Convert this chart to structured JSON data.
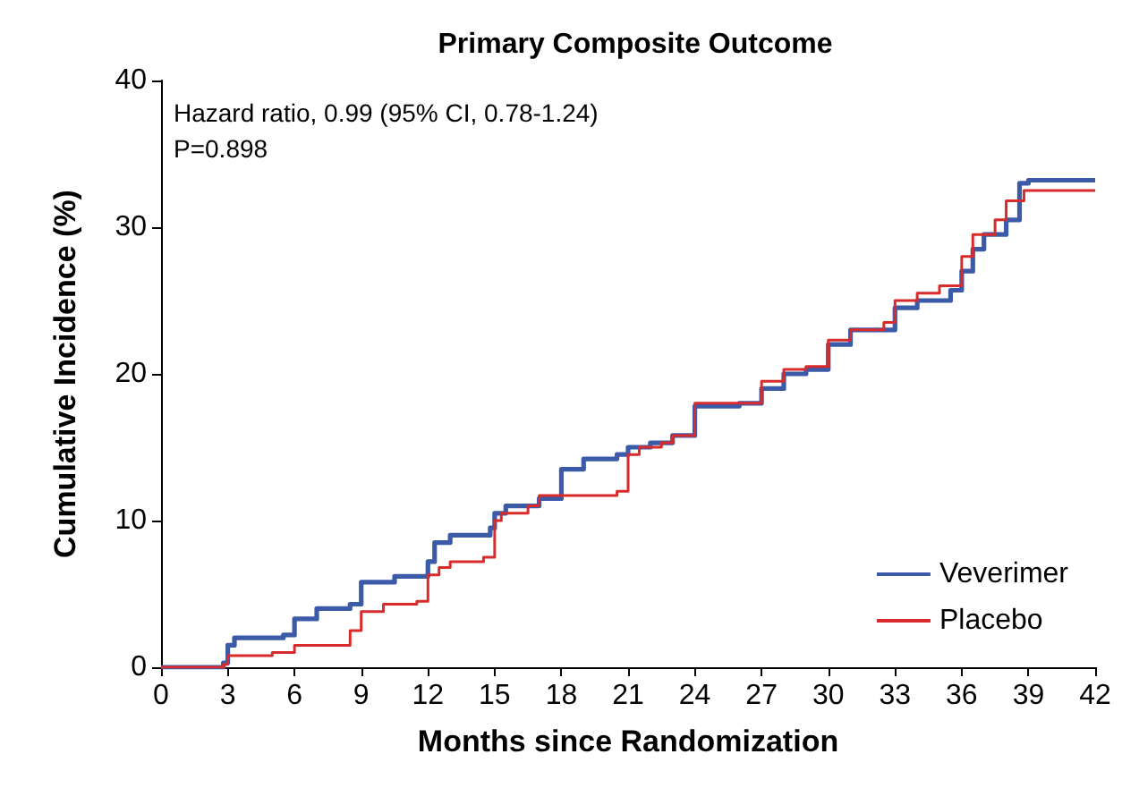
{
  "chart_data": {
    "type": "step",
    "title": "Primary Composite Outcome",
    "xlabel": "Months since Randomization",
    "ylabel": "Cumulative Incidence (%)",
    "annotations": [
      "Hazard ratio, 0.99 (95% CI, 0.78-1.24)",
      "P=0.898"
    ],
    "series": [
      {
        "name": "Veverimer",
        "color": "#3b5ba9",
        "x": [
          0,
          2.8,
          3,
          3.3,
          5.5,
          6,
          7,
          8.5,
          9,
          10.5,
          12,
          12.3,
          13,
          14.8,
          15,
          15.5,
          17,
          18,
          19,
          20.5,
          21,
          22,
          23,
          24,
          26,
          27,
          28,
          29,
          30,
          31,
          33,
          34,
          35.5,
          36,
          36.5,
          37,
          38,
          38.6,
          39,
          42
        ],
        "values": [
          0,
          0.3,
          1.5,
          2,
          2.2,
          3.3,
          4,
          4.3,
          5.8,
          6.2,
          7.2,
          8.5,
          9,
          9.5,
          10.5,
          11,
          11.5,
          13.5,
          14.2,
          14.5,
          15,
          15.3,
          15.8,
          17.8,
          18,
          19,
          20,
          20.3,
          22,
          23,
          24.5,
          25,
          25.7,
          27,
          28.5,
          29.5,
          30.5,
          33,
          33.2,
          33.2
        ]
      },
      {
        "name": "Placebo",
        "color": "#d92b2b",
        "x": [
          0,
          2.8,
          3,
          5,
          6,
          8.5,
          9,
          10,
          11.5,
          12,
          12.5,
          13,
          14.5,
          15,
          15.3,
          16.5,
          17,
          20.5,
          21,
          21.5,
          22.5,
          23,
          24,
          26,
          27,
          28,
          29,
          30,
          31,
          32.5,
          33,
          34,
          35,
          36,
          36.5,
          37.5,
          38,
          38.8,
          42
        ],
        "values": [
          0,
          0.2,
          0.8,
          1,
          1.5,
          2.5,
          3.8,
          4.3,
          4.5,
          6.3,
          6.8,
          7.2,
          7.5,
          10,
          10.5,
          11,
          11.7,
          12,
          14.5,
          15,
          15.3,
          15.8,
          18,
          18,
          19.5,
          20.3,
          20.5,
          22.3,
          23,
          23.5,
          25,
          25.5,
          26,
          28,
          29.5,
          30.5,
          31.8,
          32.5,
          32.5
        ]
      }
    ],
    "xlim": [
      0,
      42
    ],
    "xticks": [
      0,
      3,
      6,
      9,
      12,
      15,
      18,
      21,
      24,
      27,
      30,
      33,
      36,
      39,
      42
    ],
    "ylim": [
      0,
      40
    ],
    "yticks": [
      0,
      10,
      20,
      30,
      40
    ],
    "grid": false,
    "legend": "bottom right",
    "marker": "none",
    "line_style": "solid"
  }
}
